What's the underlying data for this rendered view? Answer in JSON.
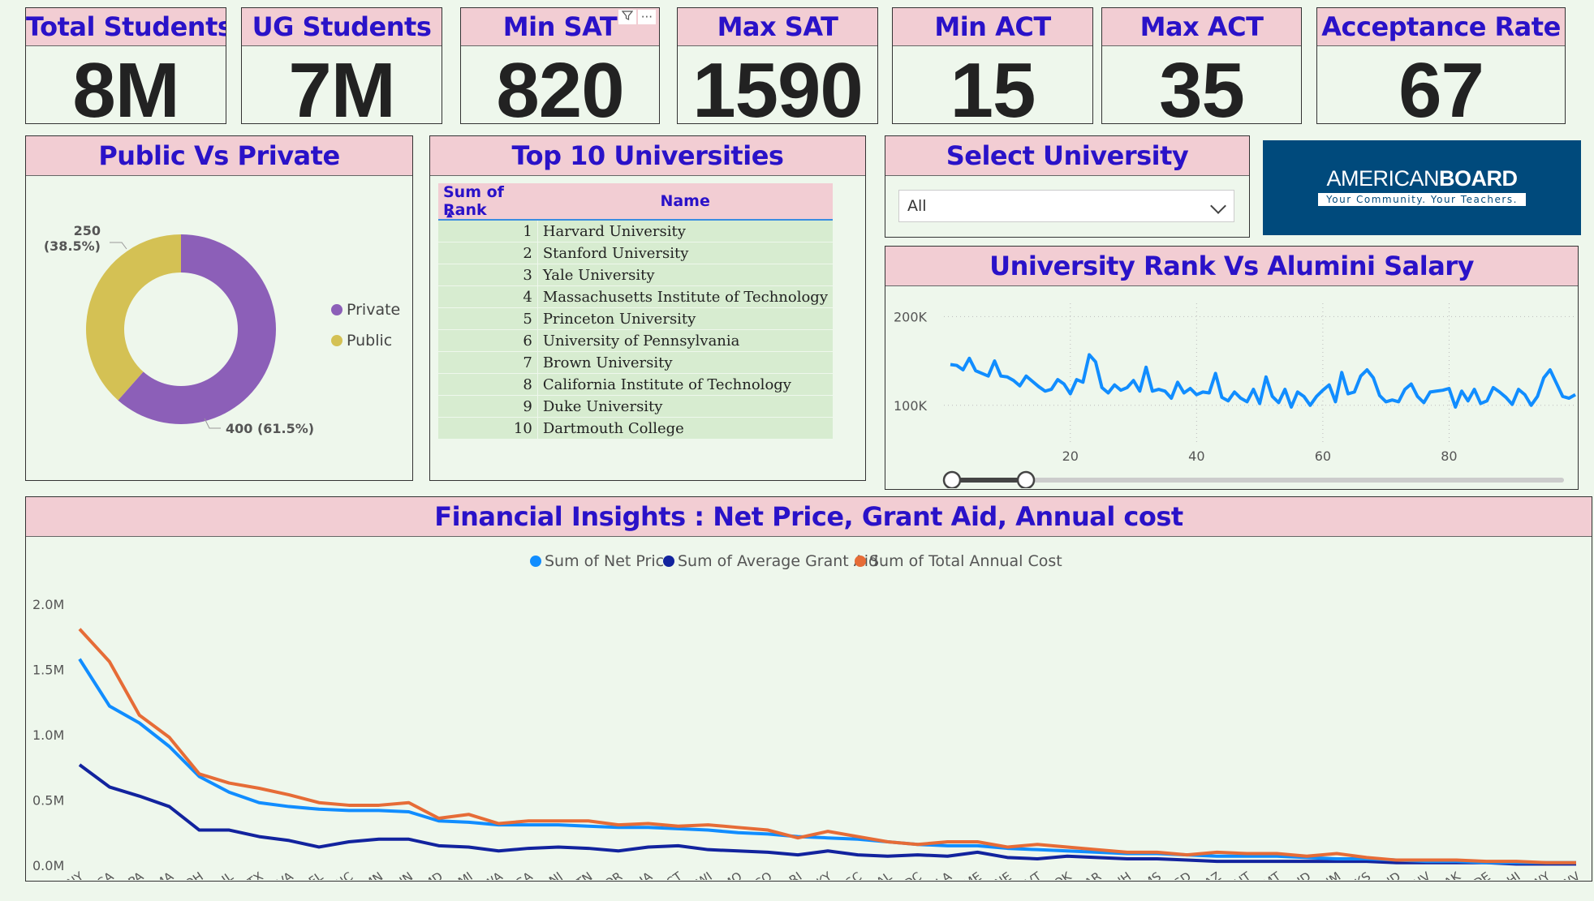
{
  "kpis": {
    "total_students": {
      "label": "Total Students",
      "value": "8M"
    },
    "ug_students": {
      "label": "UG Students",
      "value": "7M"
    },
    "min_sat": {
      "label": "Min SAT",
      "value": "820"
    },
    "max_sat": {
      "label": "Max SAT",
      "value": "1590"
    },
    "min_act": {
      "label": "Min ACT",
      "value": "15"
    },
    "max_act": {
      "label": "Max ACT",
      "value": "35"
    },
    "acceptance_rate": {
      "label": "Acceptance Rate",
      "value": "67"
    }
  },
  "visual_header_icons": {
    "filter": "filter-icon",
    "more": "more-options-icon"
  },
  "public_private": {
    "title": "Public Vs Private",
    "legend": [
      "Private",
      "Public"
    ],
    "labels": {
      "private": "400 (61.5%)",
      "public_count": "250",
      "public_pct": "(38.5%)"
    }
  },
  "top10": {
    "title": "Top 10 Universities",
    "columns": [
      "Sum of Rank",
      "Name"
    ],
    "rows": [
      {
        "rank": "1",
        "name": "Harvard University"
      },
      {
        "rank": "2",
        "name": "Stanford University"
      },
      {
        "rank": "3",
        "name": "Yale University"
      },
      {
        "rank": "4",
        "name": "Massachusetts Institute of Technology"
      },
      {
        "rank": "5",
        "name": "Princeton University"
      },
      {
        "rank": "6",
        "name": "University of Pennsylvania"
      },
      {
        "rank": "7",
        "name": "Brown University"
      },
      {
        "rank": "8",
        "name": "California Institute of Technology"
      },
      {
        "rank": "9",
        "name": "Duke University"
      },
      {
        "rank": "10",
        "name": "Dartmouth College"
      }
    ]
  },
  "slicer": {
    "title": "Select University",
    "value": "All"
  },
  "logo": {
    "brand_a": "AMERICAN",
    "brand_b": "BOARD",
    "tagline": "Your Community. Your Teachers."
  },
  "colors": {
    "header_bg": "#f2cdd3",
    "title": "#2a12c8",
    "net_price": "#118dff",
    "grant_aid": "#12239e",
    "annual_cost": "#e66c37",
    "private": "#8c5fb8",
    "public": "#d4c154",
    "salary": "#118dff"
  },
  "chart_data": [
    {
      "type": "pie",
      "title": "Public Vs Private",
      "categories": [
        "Private",
        "Public"
      ],
      "values": [
        400,
        250
      ],
      "legend": "right"
    },
    {
      "type": "line",
      "title": "University Rank Vs Alumini Salary",
      "y_ticks": [
        "200K",
        "100K"
      ],
      "x_ticks": [
        "20",
        "40",
        "60",
        "80"
      ],
      "xlim": [
        1,
        100
      ],
      "ylim": [
        55000,
        215000
      ],
      "x": [
        1,
        2,
        3,
        4,
        5,
        6,
        7,
        8,
        9,
        10,
        11,
        12,
        13,
        14,
        15,
        16,
        17,
        18,
        19,
        20,
        21,
        22,
        23,
        24,
        25,
        26,
        27,
        28,
        29,
        30,
        31,
        32,
        33,
        34,
        35,
        36,
        37,
        38,
        39,
        40,
        41,
        42,
        43,
        44,
        45,
        46,
        47,
        48,
        49,
        50,
        51,
        52,
        53,
        54,
        55,
        56,
        57,
        58,
        59,
        60,
        61,
        62,
        63,
        64,
        65,
        66,
        67,
        68,
        69,
        70,
        71,
        72,
        73,
        74,
        75,
        76,
        77,
        78,
        79,
        80,
        81,
        82,
        83,
        84,
        85,
        86,
        87,
        88,
        89,
        90,
        91,
        92,
        93,
        94,
        95,
        96,
        97,
        98,
        99,
        100
      ],
      "values": [
        146000,
        145000,
        140000,
        153000,
        139000,
        136000,
        133000,
        150000,
        133000,
        132000,
        128000,
        122000,
        133000,
        127000,
        121000,
        116000,
        118000,
        129000,
        124000,
        113000,
        129000,
        126000,
        157000,
        149000,
        120000,
        114000,
        123000,
        117000,
        120000,
        128000,
        116000,
        143000,
        116000,
        118000,
        116000,
        108000,
        126000,
        114000,
        119000,
        112000,
        115000,
        114000,
        136000,
        109000,
        105000,
        115000,
        108000,
        104000,
        118000,
        102000,
        132000,
        110000,
        103000,
        118000,
        98000,
        115000,
        110000,
        100000,
        110000,
        117000,
        123000,
        104000,
        137000,
        113000,
        115000,
        133000,
        140000,
        131000,
        111000,
        104000,
        106000,
        104000,
        118000,
        124000,
        110000,
        103000,
        115000,
        116000,
        117000,
        119000,
        98000,
        116000,
        105000,
        118000,
        102000,
        105000,
        120000,
        115000,
        109000,
        101000,
        118000,
        112000,
        100000,
        110000,
        131000,
        140000,
        125000,
        110000,
        108000,
        112000
      ],
      "slider": {
        "from": 1,
        "to": 13
      }
    },
    {
      "type": "line",
      "title": "Financial Insights : Net Price, Grant Aid, Annual cost",
      "legend": "top",
      "categories": [
        "NY",
        "CA",
        "PA",
        "MA",
        "OH",
        "IL",
        "TX",
        "VA",
        "FL",
        "NC",
        "MN",
        "IN",
        "MD",
        "MI",
        "WA",
        "GA",
        "NJ",
        "TN",
        "OR",
        "IA",
        "CT",
        "WI",
        "MO",
        "CO",
        "RI",
        "KY",
        "SC",
        "AL",
        "DC",
        "LA",
        "ME",
        "NE",
        "VT",
        "OK",
        "AR",
        "NH",
        "MS",
        "SD",
        "AZ",
        "UT",
        "MT",
        "ID",
        "NM",
        "KS",
        "ND",
        "NV",
        "AK",
        "DE",
        "HI",
        "WY",
        "WV"
      ],
      "y_ticks": [
        "2.0M",
        "1.5M",
        "1.0M",
        "0.5M",
        "0.0M"
      ],
      "ylim": [
        0,
        2000000
      ],
      "series": [
        {
          "name": "Sum of Net Price",
          "values": [
            1580000,
            1220000,
            1090000,
            910000,
            680000,
            560000,
            480000,
            450000,
            430000,
            420000,
            420000,
            410000,
            340000,
            330000,
            310000,
            310000,
            310000,
            300000,
            290000,
            290000,
            280000,
            270000,
            250000,
            240000,
            220000,
            210000,
            200000,
            180000,
            160000,
            150000,
            150000,
            130000,
            120000,
            110000,
            100000,
            90000,
            90000,
            80000,
            70000,
            70000,
            70000,
            60000,
            50000,
            50000,
            40000,
            30000,
            30000,
            20000,
            20000,
            20000,
            20000
          ]
        },
        {
          "name": "Sum of Average Grant Aid",
          "values": [
            770000,
            600000,
            530000,
            450000,
            270000,
            270000,
            220000,
            190000,
            140000,
            180000,
            200000,
            200000,
            150000,
            140000,
            110000,
            130000,
            140000,
            130000,
            110000,
            140000,
            150000,
            120000,
            110000,
            100000,
            80000,
            110000,
            80000,
            70000,
            80000,
            70000,
            100000,
            60000,
            50000,
            70000,
            60000,
            50000,
            50000,
            40000,
            30000,
            30000,
            30000,
            30000,
            30000,
            30000,
            20000,
            20000,
            20000,
            20000,
            10000,
            10000,
            10000
          ]
        },
        {
          "name": "Sum of Total Annual Cost",
          "values": [
            1810000,
            1560000,
            1150000,
            980000,
            700000,
            630000,
            590000,
            540000,
            480000,
            460000,
            460000,
            480000,
            360000,
            390000,
            320000,
            340000,
            340000,
            340000,
            310000,
            320000,
            300000,
            310000,
            290000,
            270000,
            210000,
            260000,
            220000,
            180000,
            160000,
            180000,
            180000,
            140000,
            160000,
            140000,
            120000,
            100000,
            100000,
            80000,
            100000,
            90000,
            90000,
            70000,
            90000,
            60000,
            40000,
            40000,
            40000,
            30000,
            30000,
            20000,
            20000
          ]
        }
      ]
    }
  ]
}
